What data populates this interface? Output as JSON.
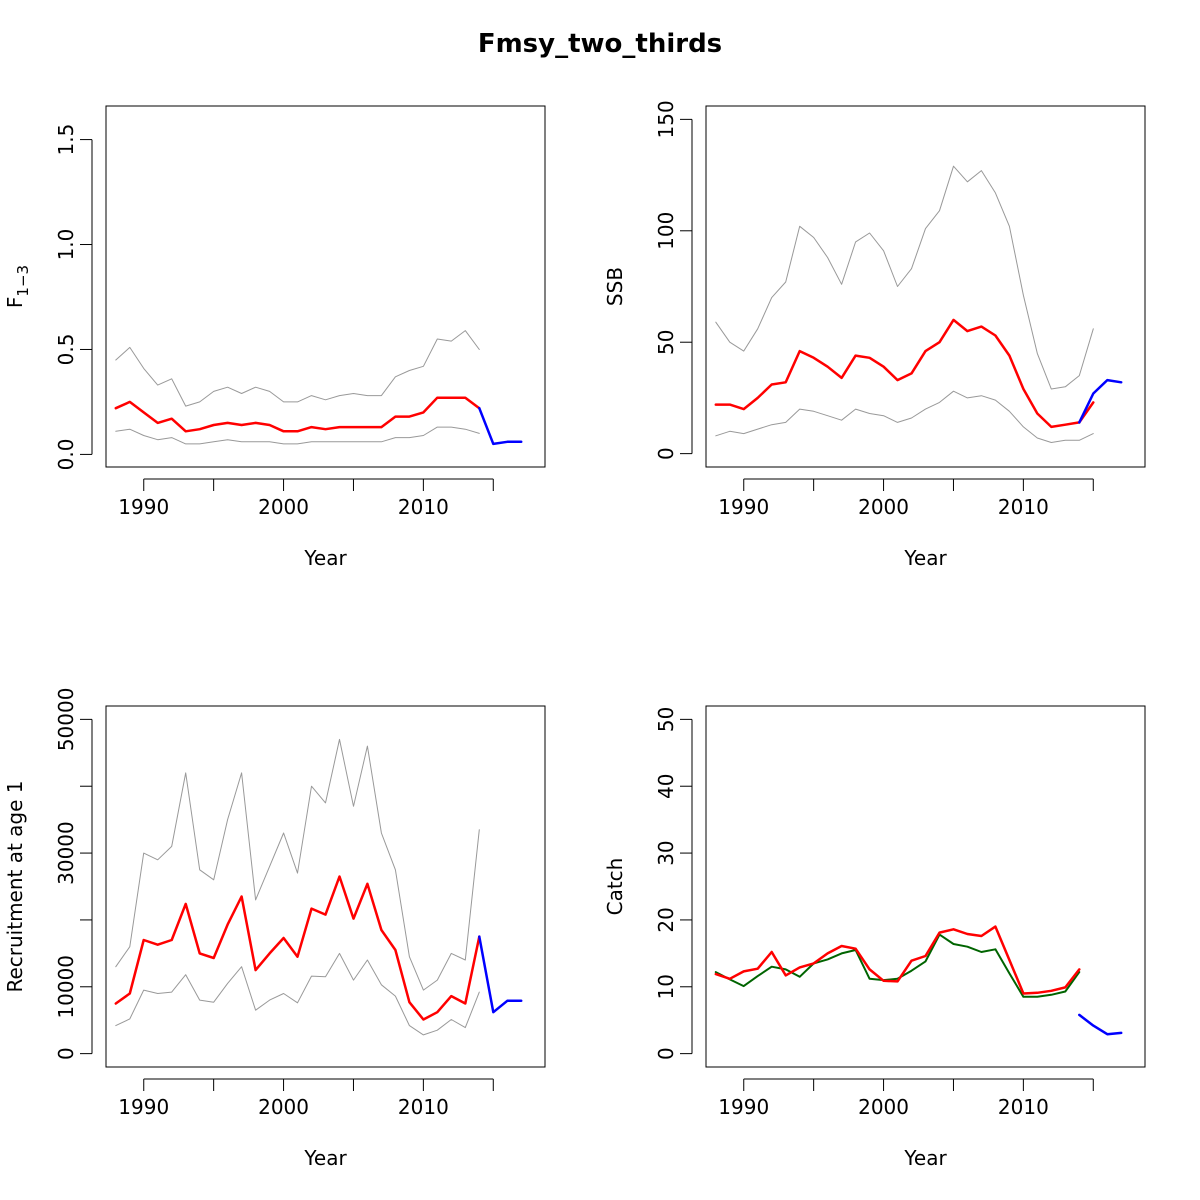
{
  "title": "Fmsy_two_thirds",
  "chart_data": [
    {
      "type": "line",
      "panel": "top-left",
      "xlabel": "Year",
      "ylabel": "F",
      "ylabel_subscript": "1−3",
      "xlim": [
        1987.3,
        2018.7
      ],
      "ylim": [
        -0.06,
        1.66
      ],
      "xticks": [
        1990,
        1995,
        2000,
        2005,
        2010,
        2015
      ],
      "xtick_labels": [
        "1990",
        "",
        "2000",
        "",
        "2010",
        ""
      ],
      "yticks": [
        0.0,
        0.5,
        1.0,
        1.5
      ],
      "ytick_labels": [
        "0.0",
        "0.5",
        "1.0",
        "1.5"
      ],
      "series": [
        {
          "color": "#999999",
          "width": 1,
          "x": [
            1988,
            1989,
            1990,
            1991,
            1992,
            1993,
            1994,
            1995,
            1996,
            1997,
            1998,
            1999,
            2000,
            2001,
            2002,
            2003,
            2004,
            2005,
            2006,
            2007,
            2008,
            2009,
            2010,
            2011,
            2012,
            2013,
            2014
          ],
          "y": [
            0.45,
            0.51,
            0.41,
            0.33,
            0.36,
            0.23,
            0.25,
            0.3,
            0.32,
            0.29,
            0.32,
            0.3,
            0.25,
            0.25,
            0.28,
            0.26,
            0.28,
            0.29,
            0.28,
            0.28,
            0.37,
            0.4,
            0.42,
            0.55,
            0.54,
            0.59,
            0.5
          ]
        },
        {
          "color": "#999999",
          "width": 1,
          "x": [
            1988,
            1989,
            1990,
            1991,
            1992,
            1993,
            1994,
            1995,
            1996,
            1997,
            1998,
            1999,
            2000,
            2001,
            2002,
            2003,
            2004,
            2005,
            2006,
            2007,
            2008,
            2009,
            2010,
            2011,
            2012,
            2013,
            2014
          ],
          "y": [
            0.11,
            0.12,
            0.09,
            0.07,
            0.08,
            0.05,
            0.05,
            0.06,
            0.07,
            0.06,
            0.06,
            0.06,
            0.05,
            0.05,
            0.06,
            0.06,
            0.06,
            0.06,
            0.06,
            0.06,
            0.08,
            0.08,
            0.09,
            0.13,
            0.13,
            0.12,
            0.1
          ]
        },
        {
          "color": "#ff0000",
          "width": 2.5,
          "x": [
            1988,
            1989,
            1990,
            1991,
            1992,
            1993,
            1994,
            1995,
            1996,
            1997,
            1998,
            1999,
            2000,
            2001,
            2002,
            2003,
            2004,
            2005,
            2006,
            2007,
            2008,
            2009,
            2010,
            2011,
            2012,
            2013,
            2014
          ],
          "y": [
            0.22,
            0.25,
            0.2,
            0.15,
            0.17,
            0.11,
            0.12,
            0.14,
            0.15,
            0.14,
            0.15,
            0.14,
            0.11,
            0.11,
            0.13,
            0.12,
            0.13,
            0.13,
            0.13,
            0.13,
            0.18,
            0.18,
            0.2,
            0.27,
            0.27,
            0.27,
            0.22
          ]
        },
        {
          "color": "#0000ff",
          "width": 2.5,
          "x": [
            2014,
            2015,
            2016,
            2017
          ],
          "y": [
            0.22,
            0.05,
            0.06,
            0.06
          ]
        }
      ]
    },
    {
      "type": "line",
      "panel": "top-right",
      "xlabel": "Year",
      "ylabel": "SSB",
      "xlim": [
        1987.3,
        2018.7
      ],
      "ylim": [
        -6,
        156
      ],
      "xticks": [
        1990,
        1995,
        2000,
        2005,
        2010,
        2015
      ],
      "xtick_labels": [
        "1990",
        "",
        "2000",
        "",
        "2010",
        ""
      ],
      "yticks": [
        0,
        50,
        100,
        150
      ],
      "ytick_labels": [
        "0",
        "50",
        "100",
        "150"
      ],
      "series": [
        {
          "color": "#999999",
          "width": 1,
          "x": [
            1988,
            1989,
            1990,
            1991,
            1992,
            1993,
            1994,
            1995,
            1996,
            1997,
            1998,
            1999,
            2000,
            2001,
            2002,
            2003,
            2004,
            2005,
            2006,
            2007,
            2008,
            2009,
            2010,
            2011,
            2012,
            2013,
            2014,
            2015
          ],
          "y": [
            59,
            50,
            46,
            56,
            70,
            77,
            102,
            97,
            88,
            76,
            95,
            99,
            91,
            75,
            83,
            101,
            109,
            129,
            122,
            127,
            117,
            102,
            71,
            45,
            29,
            30,
            35,
            56
          ]
        },
        {
          "color": "#999999",
          "width": 1,
          "x": [
            1988,
            1989,
            1990,
            1991,
            1992,
            1993,
            1994,
            1995,
            1996,
            1997,
            1998,
            1999,
            2000,
            2001,
            2002,
            2003,
            2004,
            2005,
            2006,
            2007,
            2008,
            2009,
            2010,
            2011,
            2012,
            2013,
            2014,
            2015
          ],
          "y": [
            8,
            10,
            9,
            11,
            13,
            14,
            20,
            19,
            17,
            15,
            20,
            18,
            17,
            14,
            16,
            20,
            23,
            28,
            25,
            26,
            24,
            19,
            12,
            7,
            5,
            6,
            6,
            9
          ]
        },
        {
          "color": "#ff0000",
          "width": 2.5,
          "x": [
            1988,
            1989,
            1990,
            1991,
            1992,
            1993,
            1994,
            1995,
            1996,
            1997,
            1998,
            1999,
            2000,
            2001,
            2002,
            2003,
            2004,
            2005,
            2006,
            2007,
            2008,
            2009,
            2010,
            2011,
            2012,
            2013,
            2014,
            2015
          ],
          "y": [
            22,
            22,
            20,
            25,
            31,
            32,
            46,
            43,
            39,
            34,
            44,
            43,
            39,
            33,
            36,
            46,
            50,
            60,
            55,
            57,
            53,
            44,
            29,
            18,
            12,
            13,
            14,
            23
          ]
        },
        {
          "color": "#0000ff",
          "width": 2.5,
          "x": [
            2014,
            2015,
            2016,
            2017
          ],
          "y": [
            14,
            27,
            33,
            32
          ]
        }
      ]
    },
    {
      "type": "line",
      "panel": "bottom-left",
      "xlabel": "Year",
      "ylabel": "Recruitment at age 1",
      "xlim": [
        1987.3,
        2018.7
      ],
      "ylim": [
        -2000,
        52000
      ],
      "xticks": [
        1990,
        1995,
        2000,
        2005,
        2010,
        2015
      ],
      "xtick_labels": [
        "1990",
        "",
        "2000",
        "",
        "2010",
        ""
      ],
      "yticks": [
        0,
        10000,
        20000,
        30000,
        40000,
        50000
      ],
      "ytick_labels": [
        "0",
        "10000",
        "",
        "30000",
        "",
        "50000"
      ],
      "series": [
        {
          "color": "#999999",
          "width": 1,
          "x": [
            1988,
            1989,
            1990,
            1991,
            1992,
            1993,
            1994,
            1995,
            1996,
            1997,
            1998,
            1999,
            2000,
            2001,
            2002,
            2003,
            2004,
            2005,
            2006,
            2007,
            2008,
            2009,
            2010,
            2011,
            2012,
            2013,
            2014
          ],
          "y": [
            13000,
            16000,
            30000,
            29000,
            31000,
            42000,
            27500,
            26000,
            35000,
            42000,
            23000,
            28000,
            33000,
            27000,
            40000,
            37500,
            47000,
            37000,
            46000,
            33000,
            27500,
            14500,
            9500,
            11000,
            15000,
            14000,
            33500
          ]
        },
        {
          "color": "#999999",
          "width": 1,
          "x": [
            1988,
            1989,
            1990,
            1991,
            1992,
            1993,
            1994,
            1995,
            1996,
            1997,
            1998,
            1999,
            2000,
            2001,
            2002,
            2003,
            2004,
            2005,
            2006,
            2007,
            2008,
            2009,
            2010,
            2011,
            2012,
            2013,
            2014
          ],
          "y": [
            4200,
            5200,
            9500,
            9000,
            9200,
            11800,
            8000,
            7700,
            10500,
            13000,
            6500,
            8000,
            9000,
            7600,
            11600,
            11500,
            15000,
            11000,
            14000,
            10300,
            8600,
            4200,
            2800,
            3500,
            5100,
            3900,
            9200
          ]
        },
        {
          "color": "#ff0000",
          "width": 2.5,
          "x": [
            1988,
            1989,
            1990,
            1991,
            1992,
            1993,
            1994,
            1995,
            1996,
            1997,
            1998,
            1999,
            2000,
            2001,
            2002,
            2003,
            2004,
            2005,
            2006,
            2007,
            2008,
            2009,
            2010,
            2011,
            2012,
            2013,
            2014
          ],
          "y": [
            7500,
            9000,
            17000,
            16300,
            17000,
            22400,
            15000,
            14300,
            19300,
            23500,
            12500,
            15000,
            17300,
            14500,
            21700,
            20800,
            26500,
            20200,
            25400,
            18500,
            15500,
            7700,
            5100,
            6200,
            8600,
            7500,
            17500
          ]
        },
        {
          "color": "#0000ff",
          "width": 2.5,
          "x": [
            2014,
            2015,
            2016,
            2017
          ],
          "y": [
            17500,
            6200,
            7900,
            7900
          ]
        }
      ]
    },
    {
      "type": "line",
      "panel": "bottom-right",
      "xlabel": "Year",
      "ylabel": "Catch",
      "xlim": [
        1987.3,
        2018.7
      ],
      "ylim": [
        -2,
        52
      ],
      "xticks": [
        1990,
        1995,
        2000,
        2005,
        2010,
        2015
      ],
      "xtick_labels": [
        "1990",
        "",
        "2000",
        "",
        "2010",
        ""
      ],
      "yticks": [
        0,
        10,
        20,
        30,
        40,
        50
      ],
      "ytick_labels": [
        "0",
        "10",
        "20",
        "30",
        "40",
        "50"
      ],
      "series": [
        {
          "color": "#006400",
          "width": 2,
          "x": [
            1988,
            1989,
            1990,
            1991,
            1992,
            1993,
            1994,
            1995,
            1996,
            1997,
            1998,
            1999,
            2000,
            2001,
            2002,
            2003,
            2004,
            2005,
            2006,
            2007,
            2008,
            2009,
            2010,
            2011,
            2012,
            2013,
            2014
          ],
          "y": [
            12.2,
            11.1,
            10.1,
            11.6,
            13.0,
            12.6,
            11.5,
            13.5,
            14.1,
            15.0,
            15.5,
            11.2,
            11.0,
            11.2,
            12.4,
            13.8,
            17.8,
            16.4,
            16.0,
            15.2,
            15.6,
            12.0,
            8.5,
            8.5,
            8.8,
            9.3,
            12.2
          ]
        },
        {
          "color": "#ff0000",
          "width": 2.5,
          "x": [
            1988,
            1989,
            1990,
            1991,
            1992,
            1993,
            1994,
            1995,
            1996,
            1997,
            1998,
            1999,
            2000,
            2001,
            2002,
            2003,
            2004,
            2005,
            2006,
            2007,
            2008,
            2009,
            2010,
            2011,
            2012,
            2013,
            2014
          ],
          "y": [
            11.9,
            11.2,
            12.3,
            12.7,
            15.2,
            11.7,
            12.9,
            13.5,
            15.0,
            16.1,
            15.7,
            12.6,
            10.9,
            10.8,
            13.9,
            14.6,
            18.1,
            18.6,
            17.9,
            17.6,
            19.0,
            14.0,
            9.0,
            9.1,
            9.4,
            9.9,
            12.6
          ]
        },
        {
          "color": "#0000ff",
          "width": 2.5,
          "x": [
            2014,
            2015,
            2016,
            2017
          ],
          "y": [
            5.8,
            4.2,
            2.9,
            3.1
          ]
        }
      ]
    }
  ]
}
